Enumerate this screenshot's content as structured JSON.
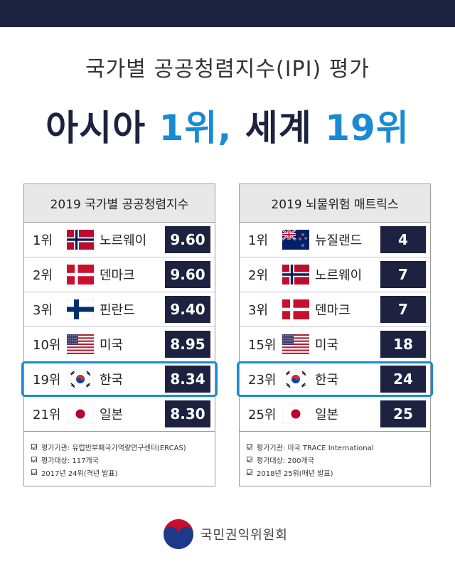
{
  "header": {
    "title_line1": "국가별 공공청렴지수(IPI) 평가",
    "title_line2_part1": "아시아 ",
    "title_line2_part2": "1위,",
    "title_line2_part3": " 세계 ",
    "title_line2_part4": "19위"
  },
  "colors": {
    "navy": "#1d2240",
    "accent": "#1a8ad4",
    "panel_header": "#e8e8e8"
  },
  "left_panel": {
    "title": "2019 국가별 공공청렴지수",
    "rows": [
      {
        "rank": "1위",
        "flag": "norway-flag-icon",
        "country": "노르웨이",
        "score": "9.60"
      },
      {
        "rank": "2위",
        "flag": "denmark-flag-icon",
        "country": "덴마크",
        "score": "9.60"
      },
      {
        "rank": "3위",
        "flag": "finland-flag-icon",
        "country": "핀란드",
        "score": "9.40"
      },
      {
        "rank": "10위",
        "flag": "usa-flag-icon",
        "country": "미국",
        "score": "8.95"
      },
      {
        "rank": "19위",
        "flag": "korea-flag-icon",
        "country": "한국",
        "score": "8.34",
        "highlight": true
      },
      {
        "rank": "21위",
        "flag": "japan-flag-icon",
        "country": "일본",
        "score": "8.30"
      }
    ],
    "notes": [
      "평가기관: 유럽반부패국가역량연구센터(ERCAS)",
      "평가대상: 117개국",
      "2017년 24위(격년 발표)"
    ]
  },
  "right_panel": {
    "title": "2019 뇌물위험 매트릭스",
    "rows": [
      {
        "rank": "1위",
        "flag": "new-zealand-flag-icon",
        "country": "뉴질랜드",
        "score": "4"
      },
      {
        "rank": "2위",
        "flag": "norway-flag-icon",
        "country": "노르웨이",
        "score": "7"
      },
      {
        "rank": "3위",
        "flag": "denmark-flag-icon",
        "country": "덴마크",
        "score": "7"
      },
      {
        "rank": "15위",
        "flag": "usa-flag-icon",
        "country": "미국",
        "score": "18"
      },
      {
        "rank": "23위",
        "flag": "korea-flag-icon",
        "country": "한국",
        "score": "24",
        "highlight": true
      },
      {
        "rank": "25위",
        "flag": "japan-flag-icon",
        "country": "일본",
        "score": "25"
      }
    ],
    "notes": [
      "평가기관: 미국 TRACE International",
      "평가대상: 200개국",
      "2018년 25위(매년 발표)"
    ]
  },
  "footer": {
    "org_name": "국민권익위원회",
    "logo": "government-emblem-icon"
  }
}
